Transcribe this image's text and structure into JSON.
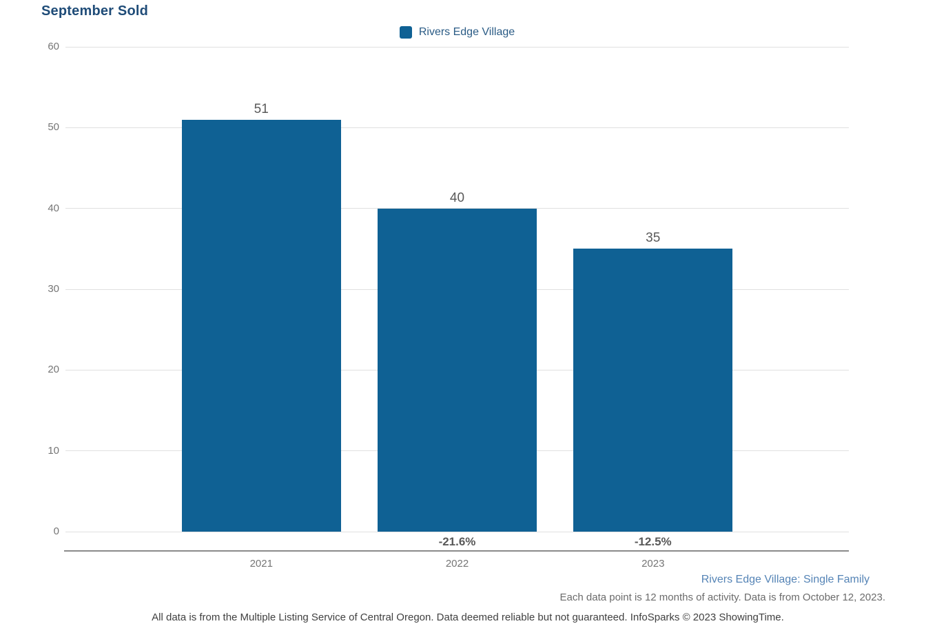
{
  "chart": {
    "title": "September Sold",
    "legend_label": "Rivers Edge Village"
  },
  "chart_data": {
    "type": "bar",
    "title": "September Sold",
    "categories": [
      "2021",
      "2022",
      "2023"
    ],
    "values": [
      51,
      40,
      35
    ],
    "bar_value_labels": [
      "51",
      "40",
      "35"
    ],
    "pct_change_labels": [
      "",
      "-21.6%",
      "-12.5%"
    ],
    "legend_entries": [
      "Rivers Edge Village"
    ],
    "legend_position": "top-center",
    "ylim": [
      0,
      60
    ],
    "yticks": [
      0,
      10,
      20,
      30,
      40,
      50,
      60
    ],
    "grid": "horizontal",
    "xlabel": "",
    "ylabel": ""
  },
  "colors": {
    "bar": "#0F6194",
    "title_text": "#1F4C78",
    "legend_text": "#2A5B85",
    "axis_text": "#757575",
    "value_label_text": "#595959",
    "gridline": "#e0e0e0",
    "axis_line": "#8a8a8a",
    "footnote_blue": "#5584B6"
  },
  "footnotes": {
    "segment": "Rivers Edge Village: Single Family",
    "activity": "Each data point is 12 months of activity. Data is from October 12, 2023.",
    "disclaimer": "All data is from the Multiple Listing Service of Central Oregon. Data deemed reliable but not guaranteed. InfoSparks © 2023 ShowingTime."
  }
}
